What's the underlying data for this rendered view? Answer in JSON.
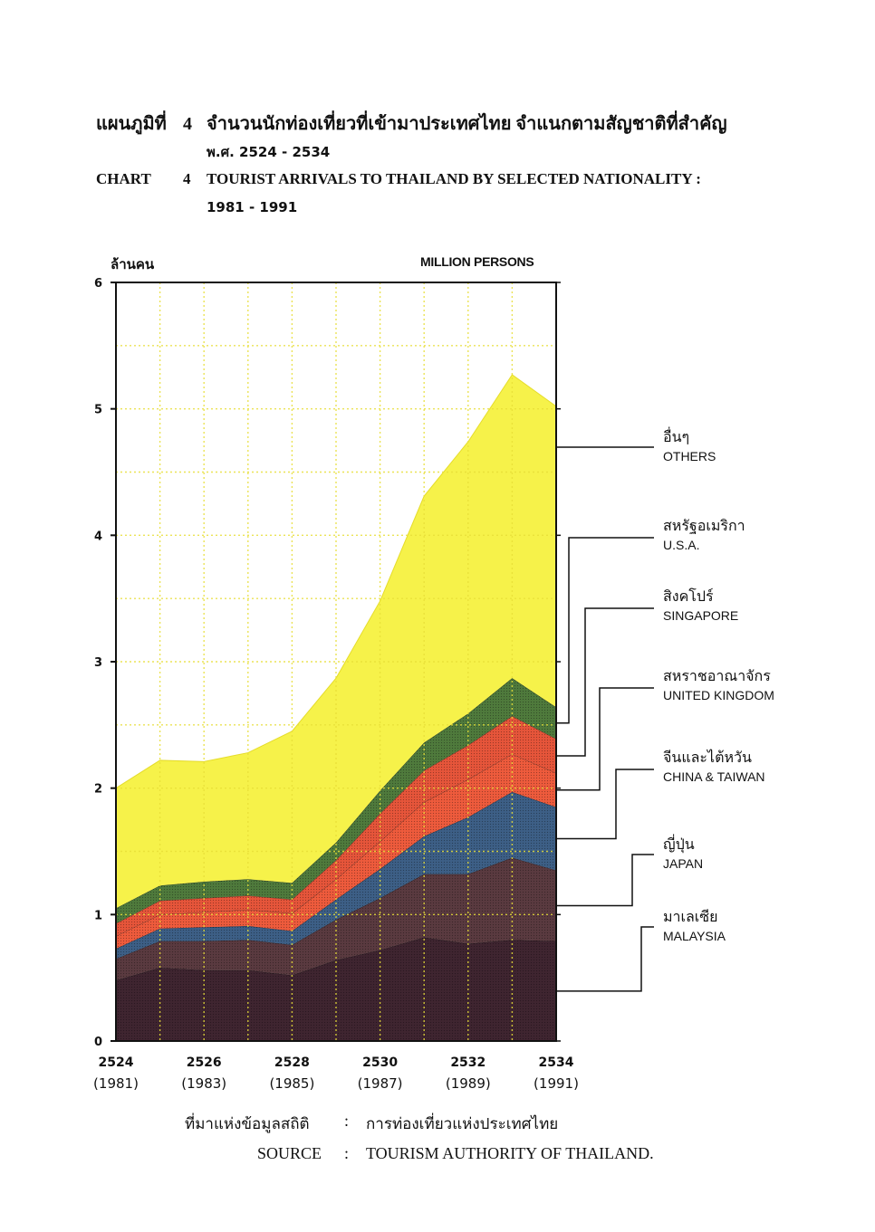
{
  "title": {
    "th_label": "แผนภูมิที่",
    "th_number": "4",
    "th_text": "จำนวนนักท่องเที่ยวที่เข้ามาประเทศไทย จำแนกตามสัญชาติที่สำคัญ",
    "th_period": "พ.ศ. 2524 - 2534",
    "en_label": "CHART",
    "en_number": "4",
    "en_text": "TOURIST ARRIVALS TO THAILAND BY SELECTED NATIONALITY :",
    "en_period": "1981 - 1991"
  },
  "units": {
    "th": "ล้านคน",
    "en": "MILLION PERSONS"
  },
  "legend": [
    {
      "th": "อื่นๆ",
      "en": "OTHERS",
      "color": "#f6f24a"
    },
    {
      "th": "สหรัฐอเมริกา",
      "en": "U.S.A.",
      "color": "#4f7a3c"
    },
    {
      "th": "สิงคโปร์",
      "en": "SINGAPORE",
      "color": "#e6553a"
    },
    {
      "th": "สหราชอาณาจักร",
      "en": "UNITED KINGDOM",
      "color": "#ee5b3c"
    },
    {
      "th": "จีนและไต้หวัน",
      "en": "CHINA & TAIWAN",
      "color": "#3d5f86"
    },
    {
      "th": "ญี่ปุ่น",
      "en": "JAPAN",
      "color": "#5a3a40"
    },
    {
      "th": "มาเลเซีย",
      "en": "MALAYSIA",
      "color": "#3f2530"
    }
  ],
  "x_ticks": [
    {
      "be": "2524",
      "ce": "(1981)"
    },
    {
      "be": "2526",
      "ce": "(1983)"
    },
    {
      "be": "2528",
      "ce": "(1985)"
    },
    {
      "be": "2530",
      "ce": "(1987)"
    },
    {
      "be": "2532",
      "ce": "(1989)"
    },
    {
      "be": "2534",
      "ce": "(1991)"
    }
  ],
  "y_ticks": [
    "0",
    "1",
    "2",
    "3",
    "4",
    "5",
    "6"
  ],
  "source": {
    "th_label": "ที่มาแห่งข้อมูลสถิติ",
    "th_value": "การท่องเที่ยวแห่งประเทศไทย",
    "en_label": "SOURCE",
    "en_value": "TOURISM AUTHORITY OF THAILAND.",
    "sep": ":"
  },
  "chart_data": {
    "type": "area",
    "stacked": true,
    "xlabel": "",
    "ylabel": "MILLION PERSONS",
    "x": [
      "2524 (1981)",
      "2525 (1982)",
      "2526 (1983)",
      "2527 (1984)",
      "2528 (1985)",
      "2529 (1986)",
      "2530 (1987)",
      "2531 (1988)",
      "2532 (1989)",
      "2533 (1990)",
      "2534 (1991)"
    ],
    "ylim": [
      0,
      6
    ],
    "grid": true,
    "series": [
      {
        "name": "MALAYSIA",
        "color": "#3f2530",
        "values": [
          0.48,
          0.58,
          0.56,
          0.56,
          0.52,
          0.64,
          0.72,
          0.82,
          0.77,
          0.8,
          0.79
        ]
      },
      {
        "name": "JAPAN",
        "color": "#5a3a40",
        "values": [
          0.17,
          0.21,
          0.23,
          0.24,
          0.24,
          0.32,
          0.41,
          0.5,
          0.55,
          0.65,
          0.56
        ]
      },
      {
        "name": "CHINA & TAIWAN",
        "color": "#3d5f86",
        "values": [
          0.08,
          0.1,
          0.11,
          0.11,
          0.11,
          0.16,
          0.23,
          0.3,
          0.45,
          0.52,
          0.5
        ]
      },
      {
        "name": "UNITED KINGDOM",
        "color": "#ee5b3c",
        "values": [
          0.1,
          0.11,
          0.12,
          0.13,
          0.14,
          0.16,
          0.22,
          0.27,
          0.3,
          0.3,
          0.27
        ]
      },
      {
        "name": "SINGAPORE",
        "color": "#e6553a",
        "values": [
          0.1,
          0.11,
          0.11,
          0.11,
          0.11,
          0.15,
          0.22,
          0.25,
          0.27,
          0.3,
          0.27
        ]
      },
      {
        "name": "U.S.A.",
        "color": "#4f7a3c",
        "values": [
          0.12,
          0.12,
          0.13,
          0.13,
          0.13,
          0.14,
          0.18,
          0.22,
          0.25,
          0.3,
          0.25
        ]
      },
      {
        "name": "OTHERS",
        "color": "#f6f24a",
        "values": [
          0.95,
          0.99,
          0.95,
          1.0,
          1.2,
          1.3,
          1.5,
          1.95,
          2.15,
          2.4,
          2.38
        ]
      }
    ]
  }
}
